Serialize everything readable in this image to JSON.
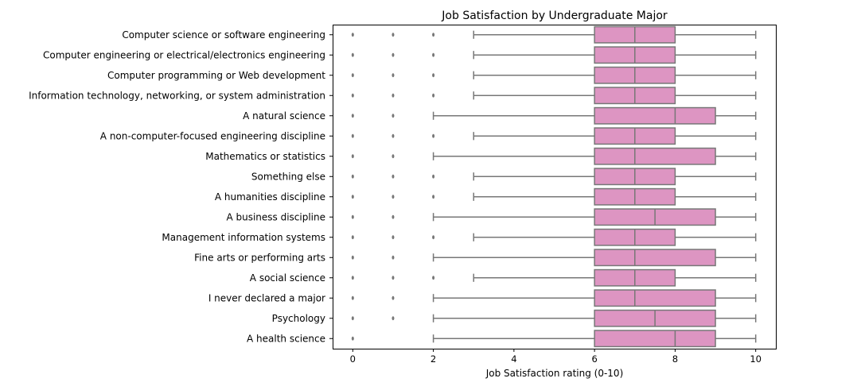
{
  "chart_data": {
    "type": "boxplot",
    "orientation": "horizontal",
    "title": "Job Satisfaction by Undergraduate Major",
    "xlabel": "Job Satisfaction rating (0-10)",
    "ylabel": "",
    "xlim": [
      -0.5,
      10.5
    ],
    "xticks": [
      0,
      2,
      4,
      6,
      8,
      10
    ],
    "grid": false,
    "box_color": "#dd95c2",
    "line_color": "#777777",
    "categories": [
      {
        "label": "Computer science or software engineering",
        "min": 3,
        "q1": 6,
        "median": 7,
        "q3": 8,
        "max": 10,
        "outliers": [
          0,
          1,
          2
        ]
      },
      {
        "label": "Computer engineering or electrical/electronics engineering",
        "min": 3,
        "q1": 6,
        "median": 7,
        "q3": 8,
        "max": 10,
        "outliers": [
          0,
          1,
          2
        ]
      },
      {
        "label": "Computer programming or Web development",
        "min": 3,
        "q1": 6,
        "median": 7,
        "q3": 8,
        "max": 10,
        "outliers": [
          0,
          1,
          2
        ]
      },
      {
        "label": "Information technology, networking, or system administration",
        "min": 3,
        "q1": 6,
        "median": 7,
        "q3": 8,
        "max": 10,
        "outliers": [
          0,
          1,
          2
        ]
      },
      {
        "label": "A natural science",
        "min": 2,
        "q1": 6,
        "median": 8,
        "q3": 9,
        "max": 10,
        "outliers": [
          0,
          1
        ]
      },
      {
        "label": "A non-computer-focused engineering discipline",
        "min": 3,
        "q1": 6,
        "median": 7,
        "q3": 8,
        "max": 10,
        "outliers": [
          0,
          1,
          2
        ]
      },
      {
        "label": "Mathematics or statistics",
        "min": 2,
        "q1": 6,
        "median": 7,
        "q3": 9,
        "max": 10,
        "outliers": [
          0,
          1
        ]
      },
      {
        "label": "Something else",
        "min": 3,
        "q1": 6,
        "median": 7,
        "q3": 8,
        "max": 10,
        "outliers": [
          0,
          1,
          2
        ]
      },
      {
        "label": "A humanities discipline",
        "min": 3,
        "q1": 6,
        "median": 7,
        "q3": 8,
        "max": 10,
        "outliers": [
          0,
          1,
          2
        ]
      },
      {
        "label": "A business discipline",
        "min": 2,
        "q1": 6,
        "median": 7.5,
        "q3": 9,
        "max": 10,
        "outliers": [
          0,
          1
        ]
      },
      {
        "label": "Management information systems",
        "min": 3,
        "q1": 6,
        "median": 7,
        "q3": 8,
        "max": 10,
        "outliers": [
          0,
          1,
          2
        ]
      },
      {
        "label": "Fine arts or performing arts",
        "min": 2,
        "q1": 6,
        "median": 7,
        "q3": 9,
        "max": 10,
        "outliers": [
          0,
          1
        ]
      },
      {
        "label": "A social science",
        "min": 3,
        "q1": 6,
        "median": 7,
        "q3": 8,
        "max": 10,
        "outliers": [
          0,
          1,
          2
        ]
      },
      {
        "label": "I never declared a major",
        "min": 2,
        "q1": 6,
        "median": 7,
        "q3": 9,
        "max": 10,
        "outliers": [
          0,
          1
        ]
      },
      {
        "label": "Psychology",
        "min": 2,
        "q1": 6,
        "median": 7.5,
        "q3": 9,
        "max": 10,
        "outliers": [
          0,
          1
        ]
      },
      {
        "label": "A health science",
        "min": 2,
        "q1": 6,
        "median": 8,
        "q3": 9,
        "max": 10,
        "outliers": [
          0
        ]
      }
    ]
  }
}
